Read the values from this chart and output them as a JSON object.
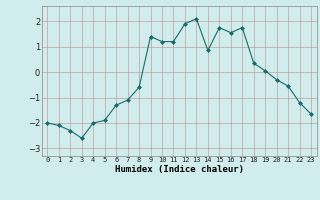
{
  "x": [
    0,
    1,
    2,
    3,
    4,
    5,
    6,
    7,
    8,
    9,
    10,
    11,
    12,
    13,
    14,
    15,
    16,
    17,
    18,
    19,
    20,
    21,
    22,
    23
  ],
  "y": [
    -2.0,
    -2.1,
    -2.3,
    -2.6,
    -2.0,
    -1.9,
    -1.3,
    -1.1,
    -0.6,
    1.4,
    1.2,
    1.2,
    1.9,
    2.1,
    0.85,
    1.75,
    1.55,
    1.75,
    0.35,
    0.05,
    -0.3,
    -0.55,
    -1.2,
    -1.65
  ],
  "line_color": "#1a6b6b",
  "marker": "D",
  "marker_size": 2,
  "bg_color": "#d0ecec",
  "grid_color": "#c0a0a0",
  "xlabel": "Humidex (Indice chaleur)",
  "xlim": [
    -0.5,
    23.5
  ],
  "ylim": [
    -3.3,
    2.6
  ],
  "yticks": [
    -3,
    -2,
    -1,
    0,
    1,
    2
  ],
  "xtick_labels": [
    "0",
    "1",
    "2",
    "3",
    "4",
    "5",
    "6",
    "7",
    "8",
    "9",
    "10",
    "11",
    "12",
    "13",
    "14",
    "15",
    "16",
    "17",
    "18",
    "19",
    "20",
    "21",
    "22",
    "23"
  ]
}
